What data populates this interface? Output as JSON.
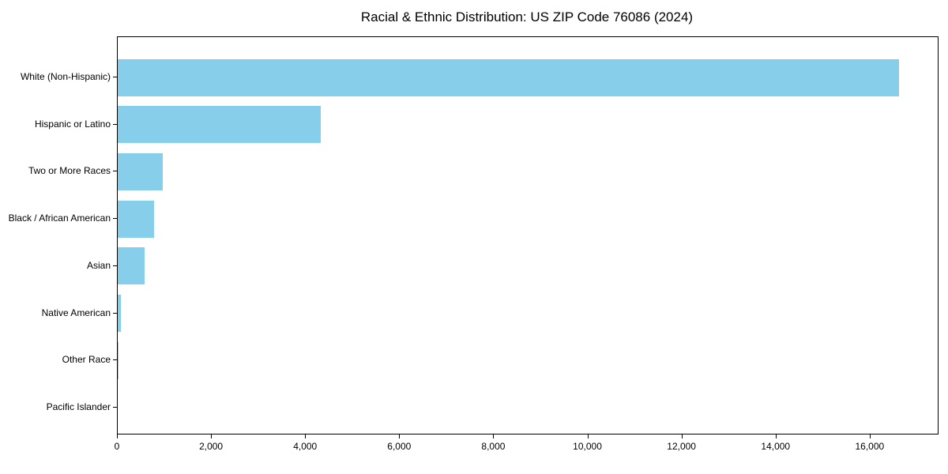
{
  "chart_data": {
    "type": "bar",
    "orientation": "horizontal",
    "title": "Racial & Ethnic Distribution: US ZIP Code 76086 (2024)",
    "categories": [
      "White (Non-Hispanic)",
      "Hispanic or Latino",
      "Two or More Races",
      "Black / African American",
      "Asian",
      "Native American",
      "Other Race",
      "Pacific Islander"
    ],
    "values": [
      16600,
      4320,
      960,
      775,
      575,
      65,
      20,
      0
    ],
    "bar_color": "#87CEEB",
    "xlabel": "",
    "ylabel": "",
    "xlim": [
      0,
      17430
    ],
    "xticks": {
      "values": [
        0,
        2000,
        4000,
        6000,
        8000,
        10000,
        12000,
        14000,
        16000
      ],
      "labels": [
        "0",
        "2,000",
        "4,000",
        "6,000",
        "8,000",
        "10,000",
        "12,000",
        "14,000",
        "16,000"
      ]
    },
    "grid": false,
    "legend": "none",
    "background": "#ffffff",
    "spine_color": "#000000"
  }
}
